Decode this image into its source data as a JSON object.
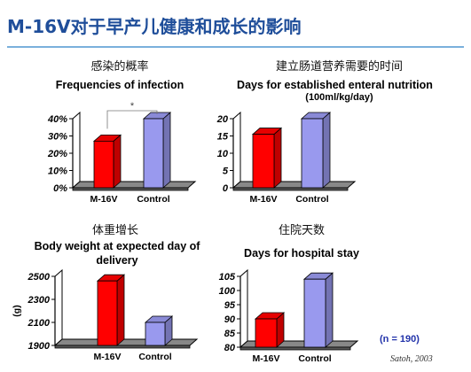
{
  "slide": {
    "title": "M-16V对于早产儿健康和成长的影响",
    "note": "(n = 190)",
    "source": "Satoh, 2003"
  },
  "colors": {
    "m16v": "#ff0000",
    "control": "#9999ee",
    "floor": "#888888",
    "wall": "#ffffff"
  },
  "chart_data": [
    {
      "type": "bar",
      "title_zh": "感染的概率",
      "title": "Frequencies of infection",
      "categories": [
        "M-16V",
        "Control"
      ],
      "values": [
        27,
        40
      ],
      "ylim": [
        0,
        40
      ],
      "ticks": [
        "0%",
        "10%",
        "20%",
        "30%",
        "40%"
      ],
      "tick_values": [
        0,
        10,
        20,
        30,
        40
      ],
      "significance": "*"
    },
    {
      "type": "bar",
      "title_zh": "建立肠道营养需要的时间",
      "title": "Days for established enteral nutrition",
      "subtitle": "(100ml/kg/day)",
      "categories": [
        "M-16V",
        "Control"
      ],
      "values": [
        15.5,
        20
      ],
      "ylim": [
        0,
        20
      ],
      "ticks": [
        "0",
        "5",
        "10",
        "15",
        "20"
      ],
      "tick_values": [
        0,
        5,
        10,
        15,
        20
      ]
    },
    {
      "type": "bar",
      "title_zh": "体重增长",
      "title": "Body weight at expected day of delivery",
      "ylabel": "(g)",
      "categories": [
        "M-16V",
        "Control"
      ],
      "values": [
        2460,
        2100
      ],
      "ylim": [
        1900,
        2500
      ],
      "ticks": [
        "1900",
        "2100",
        "2300",
        "2500"
      ],
      "tick_values": [
        1900,
        2100,
        2300,
        2500
      ]
    },
    {
      "type": "bar",
      "title_zh": "住院天数",
      "title": "Days for hospital stay",
      "categories": [
        "M-16V",
        "Control"
      ],
      "values": [
        90,
        104
      ],
      "ylim": [
        80,
        105
      ],
      "ticks": [
        "80",
        "85",
        "90",
        "95",
        "100",
        "105"
      ],
      "tick_values": [
        80,
        85,
        90,
        95,
        100,
        105
      ]
    }
  ]
}
